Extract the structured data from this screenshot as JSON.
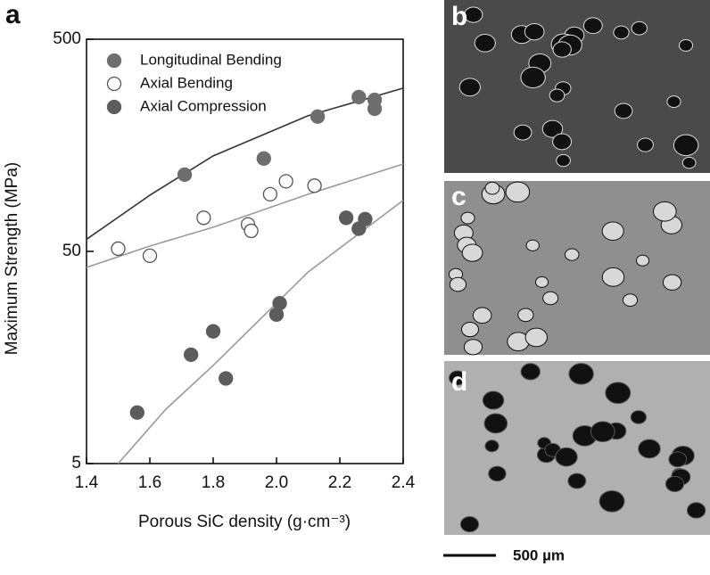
{
  "chart_data": {
    "type": "scatter",
    "xlabel": "Porous SiC density (g·cm⁻³)",
    "ylabel": "Maximum Strength (MPa)",
    "xlim": [
      1.4,
      2.4
    ],
    "xticks": [
      1.4,
      1.6,
      1.8,
      {
        "value": 2,
        "label": "2.0"
      },
      2.2,
      2.4
    ],
    "ylim": [
      5,
      500
    ],
    "log_y": true,
    "yticks": [
      5,
      50,
      500
    ],
    "legend": "top-left",
    "series": [
      {
        "name": "Longitudinal Bending",
        "color": "#6e6e6e",
        "filled": true,
        "x": [
          1.71,
          1.96,
          2.13,
          2.26,
          2.31,
          2.31
        ],
        "values": [
          115,
          137,
          216,
          267,
          259,
          235
        ]
      },
      {
        "name": "Axial Bending",
        "color": "#555555",
        "filled": false,
        "x": [
          1.5,
          1.6,
          1.77,
          1.91,
          1.92,
          1.98,
          2.03,
          2.12
        ],
        "values": [
          51.5,
          47.7,
          72,
          67,
          62.5,
          93,
          107,
          102
        ]
      },
      {
        "name": "Axial Compression",
        "color": "#5c5c5c",
        "filled": true,
        "x": [
          1.56,
          1.73,
          1.8,
          1.84,
          2.0,
          2.01,
          2.22,
          2.26,
          2.28
        ],
        "values": [
          8.7,
          16.3,
          21,
          12.6,
          25.2,
          28.5,
          72,
          64,
          71
        ]
      }
    ],
    "fit_lines": [
      {
        "color": "#333333",
        "x": [
          1.4,
          1.6,
          1.8,
          2.1,
          2.4
        ],
        "values": [
          57,
          92,
          141,
          218,
          294
        ]
      },
      {
        "color": "#999999",
        "x": [
          1.4,
          1.6,
          1.8,
          2.1,
          2.4
        ],
        "values": [
          42,
          53,
          65,
          93,
          129
        ]
      },
      {
        "color": "#999999",
        "x": [
          1.5,
          1.65,
          1.8,
          2.1,
          2.4
        ],
        "values": [
          5,
          9,
          14.5,
          40,
          87
        ]
      }
    ]
  },
  "panels": {
    "a": "a",
    "b": "b",
    "c": "c",
    "d": "d",
    "scale_bar": "500 µm"
  }
}
